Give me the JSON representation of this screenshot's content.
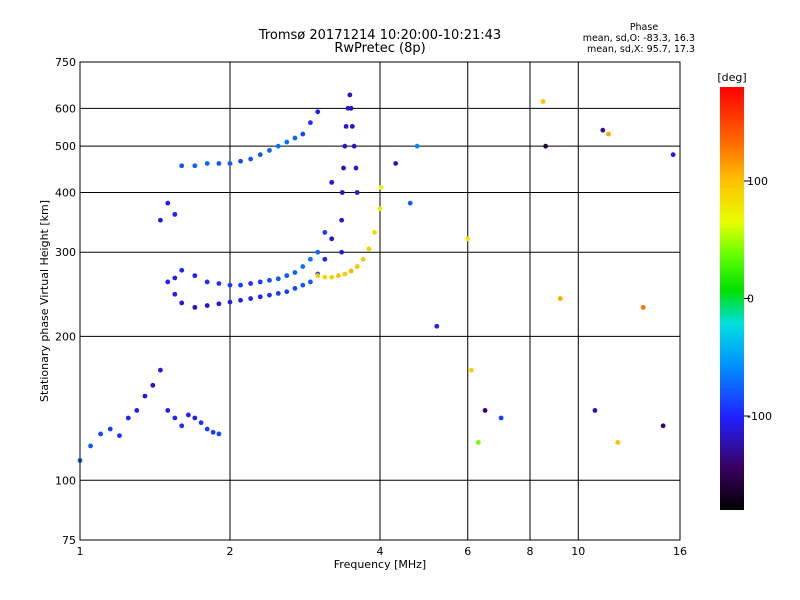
{
  "chart_data": {
    "type": "scatter",
    "title": "Tromsø 20171214 10:20:00-10:21:43",
    "subtitle": "RwPretec (8p)",
    "xlabel": "Frequency [MHz]",
    "ylabel": "Stationary phase Virtual Height [km]",
    "x_scale": "log",
    "y_scale": "log",
    "xlim": [
      1,
      16
    ],
    "ylim": [
      75,
      750
    ],
    "x_ticks": [
      1,
      2,
      4,
      6,
      8,
      10,
      16
    ],
    "x_tick_labels": [
      "1",
      "2",
      "4",
      "6",
      "8",
      "10",
      "16"
    ],
    "y_ticks": [
      75,
      100,
      200,
      300,
      400,
      500,
      600,
      750
    ],
    "y_tick_labels": [
      "75",
      "100",
      "200",
      "300",
      "400",
      "500",
      "600",
      "750"
    ],
    "grid": true,
    "stats": {
      "heading": "Phase",
      "line_o": "mean, sd,O: -83.3, 16.3",
      "line_x": "mean, sd,X:  95.7, 17.3"
    },
    "colorbar": {
      "label": "[deg]",
      "range": [
        -180,
        180
      ],
      "ticks": [
        100,
        0,
        -100
      ],
      "tick_labels": [
        "100",
        "0",
        "-100"
      ]
    },
    "series": [
      {
        "component": "lower_trace",
        "x": [
          1.0,
          1.05,
          1.1,
          1.15,
          1.2,
          1.25,
          1.3,
          1.35,
          1.4,
          1.45,
          1.5,
          1.55,
          1.6,
          1.65,
          1.7,
          1.75,
          1.8,
          1.85,
          1.9
        ],
        "y": [
          110,
          118,
          125,
          128,
          124,
          135,
          140,
          150,
          158,
          170,
          140,
          135,
          130,
          137,
          135,
          132,
          128,
          126,
          125
        ],
        "phase": [
          -75,
          -80,
          -85,
          -90,
          -95,
          -100,
          -105,
          -110,
          -115,
          -110,
          -105,
          -100,
          -95,
          -100,
          -105,
          -95,
          -90,
          -90,
          -85
        ]
      },
      {
        "component": "e_upper_band",
        "x": [
          1.45,
          1.5,
          1.55,
          1.6,
          1.7,
          1.8,
          1.9,
          2.0,
          2.1,
          2.2,
          2.3,
          2.4,
          2.5,
          2.6,
          2.7,
          2.8,
          2.9,
          3.0
        ],
        "y": [
          350,
          380,
          360,
          455,
          455,
          460,
          460,
          460,
          465,
          470,
          480,
          490,
          500,
          510,
          520,
          530,
          560,
          590
        ],
        "phase": [
          -110,
          -105,
          -100,
          -80,
          -75,
          -75,
          -80,
          -80,
          -85,
          -80,
          -80,
          -75,
          -70,
          -70,
          -75,
          -85,
          -95,
          -105
        ]
      },
      {
        "component": "o_lower_trace",
        "x": [
          1.5,
          1.55,
          1.6,
          1.7,
          1.8,
          1.9,
          2.0,
          2.1,
          2.2,
          2.3,
          2.4,
          2.5,
          2.6,
          2.7,
          2.8,
          2.9,
          3.0,
          3.1,
          3.2
        ],
        "y": [
          260,
          245,
          235,
          230,
          232,
          234,
          236,
          238,
          240,
          242,
          244,
          246,
          248,
          252,
          256,
          260,
          270,
          290,
          320
        ],
        "phase": [
          -100,
          -105,
          -110,
          -115,
          -115,
          -110,
          -105,
          -105,
          -100,
          -100,
          -95,
          -90,
          -90,
          -85,
          -80,
          -80,
          -85,
          -100,
          -115
        ]
      },
      {
        "component": "o_upper_trace",
        "x": [
          1.55,
          1.6,
          1.7,
          1.8,
          1.9,
          2.0,
          2.1,
          2.2,
          2.3,
          2.4,
          2.5,
          2.6,
          2.7,
          2.8,
          2.9,
          3.0,
          3.1,
          3.2
        ],
        "y": [
          265,
          275,
          268,
          260,
          258,
          256,
          256,
          258,
          260,
          262,
          264,
          268,
          272,
          280,
          290,
          300,
          330,
          420
        ],
        "phase": [
          -105,
          -100,
          -100,
          -95,
          -95,
          -90,
          -90,
          -95,
          -90,
          -85,
          -80,
          -80,
          -75,
          -70,
          -70,
          -75,
          -90,
          -110
        ]
      },
      {
        "component": "o_cusp_vertical",
        "x": [
          3.35,
          3.35,
          3.36,
          3.38,
          3.4,
          3.42,
          3.45,
          3.48,
          3.5,
          3.52,
          3.55,
          3.58,
          3.6
        ],
        "y": [
          300,
          350,
          400,
          450,
          500,
          550,
          600,
          640,
          600,
          550,
          500,
          450,
          400
        ],
        "phase": [
          -110,
          -115,
          -118,
          -120,
          -115,
          -112,
          -110,
          -115,
          -120,
          -118,
          -115,
          -112,
          -110
        ]
      },
      {
        "component": "x_trace",
        "x": [
          3.0,
          3.1,
          3.2,
          3.3,
          3.4,
          3.5,
          3.6,
          3.7,
          3.8,
          3.9,
          4.0,
          4.02
        ],
        "y": [
          268,
          266,
          266,
          268,
          270,
          274,
          280,
          290,
          305,
          330,
          370,
          410
        ],
        "phase": [
          95,
          90,
          92,
          100,
          98,
          105,
          100,
          95,
          90,
          85,
          80,
          70
        ]
      },
      {
        "component": "scatter_points",
        "x": [
          4.3,
          4.6,
          4.75,
          5.2,
          6.0,
          6.1,
          6.3,
          6.5,
          7.0,
          8.5,
          8.6,
          9.2,
          10.8,
          11.2,
          11.5,
          12.0,
          13.5,
          14.8,
          15.5
        ],
        "y": [
          460,
          380,
          500,
          210,
          320,
          170,
          120,
          140,
          135,
          620,
          500,
          240,
          140,
          540,
          530,
          120,
          230,
          130,
          480
        ],
        "phase": [
          -120,
          -80,
          -60,
          -100,
          80,
          90,
          40,
          -140,
          -90,
          100,
          -160,
          110,
          -120,
          -130,
          110,
          100,
          130,
          -140,
          -110
        ]
      }
    ]
  }
}
